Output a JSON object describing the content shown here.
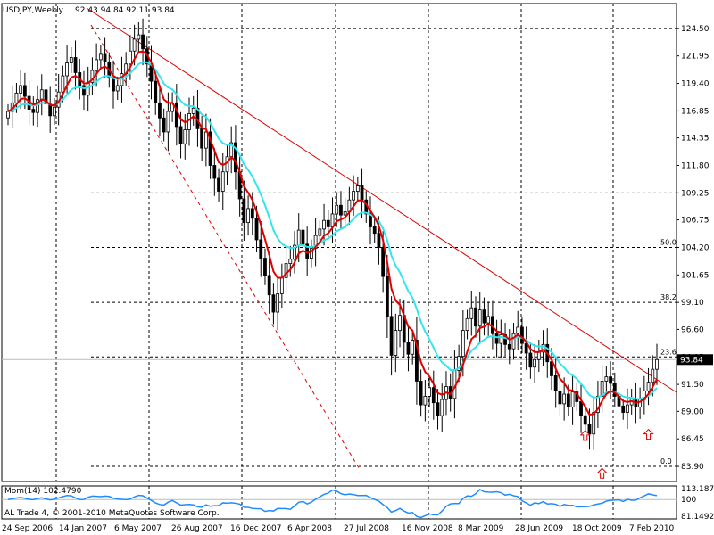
{
  "chart_data": {
    "type": "candlestick",
    "title": {
      "symbol_timeframe": "USDJPY,Weekly",
      "ohlc": "92.43 94.84 92.11 93.84"
    },
    "current_price_label": "93.84",
    "y_axis": {
      "range": [
        82.5,
        126.8
      ],
      "ticks": [
        "124.50",
        "121.95",
        "119.40",
        "116.85",
        "114.35",
        "111.80",
        "109.25",
        "106.75",
        "104.20",
        "101.65",
        "99.10",
        "96.60",
        "94.05",
        "91.50",
        "89.00",
        "86.45",
        "83.90"
      ]
    },
    "x_axis": {
      "labels": [
        "24 Sep 2006",
        "14 Jan 2007",
        "6 May 2007",
        "26 Aug 2007",
        "16 Dec 2007",
        "6 Apr 2008",
        "27 Jul 2008",
        "16 Nov 2008",
        "8 Mar 2009",
        "28 Jun 2009",
        "18 Oct 2009",
        "7 Feb 2010"
      ]
    },
    "close_series": [
      116.8,
      117.6,
      118.5,
      119.2,
      118.2,
      117.0,
      116.7,
      117.9,
      118.8,
      117.5,
      116.4,
      117.2,
      118.6,
      120.1,
      121.3,
      121.8,
      120.4,
      119.2,
      118.3,
      119.5,
      120.6,
      121.6,
      122.1,
      121.4,
      119.9,
      118.7,
      119.2,
      120.3,
      121.2,
      122.4,
      123.5,
      123.9,
      122.6,
      121.2,
      119.6,
      117.6,
      116.2,
      114.9,
      116.8,
      117.6,
      115.4,
      113.8,
      115.1,
      116.6,
      117.1,
      115.2,
      113.4,
      114.9,
      111.8,
      110.6,
      109.4,
      111.2,
      112.6,
      113.9,
      111.2,
      108.7,
      106.5,
      107.8,
      106.9,
      104.9,
      103.2,
      101.6,
      99.8,
      98.2,
      99.9,
      101.4,
      102.7,
      103.1,
      104.4,
      105.8,
      104.5,
      103.2,
      104.1,
      105.3,
      105.9,
      106.7,
      106.1,
      107.3,
      108.1,
      107.2,
      107.5,
      108.6,
      109.4,
      109.9,
      108.6,
      107.3,
      106.1,
      105.5,
      104.2,
      101.5,
      97.8,
      94.2,
      96.5,
      97.9,
      95.4,
      94.3,
      95.6,
      91.8,
      89.6,
      90.4,
      91.2,
      89.8,
      88.6,
      90.1,
      91.3,
      90.2,
      92.8,
      94.1,
      96.5,
      97.6,
      98.6,
      96.9,
      98.4,
      97.2,
      97.8,
      96.2,
      95.3,
      96.1,
      95.2,
      94.8,
      96.2,
      96.8,
      95.3,
      94.4,
      93.1,
      93.8,
      94.5,
      95.2,
      93.6,
      92.3,
      90.9,
      89.7,
      90.6,
      89.4,
      90.8,
      89.9,
      88.6,
      87.8,
      86.9,
      88.9,
      90.4,
      91.8,
      92.2,
      91.6,
      90.4,
      89.5,
      88.9,
      89.6,
      90.2,
      89.4,
      90.1,
      90.9,
      91.7,
      92.9,
      93.8
    ],
    "moving_averages": [
      {
        "name": "fast MA",
        "color": "#e00000"
      },
      {
        "name": "slow MA",
        "color": "#33e5ee"
      }
    ],
    "fibonacci": {
      "levels": [
        {
          "label": "0.0",
          "price": 83.9
        },
        {
          "label": "23.6",
          "price": 94.05
        },
        {
          "label": "38.2",
          "price": 99.1
        },
        {
          "label": "50.0",
          "price": 104.2
        }
      ]
    },
    "arrow_markers": [
      {
        "week_index": 137,
        "price": 87.8
      },
      {
        "week_index": 141,
        "price": 84.3
      },
      {
        "week_index": 152,
        "price": 87.9
      }
    ],
    "indicator": {
      "label": "Mom(14) 102.4790",
      "range": [
        81.1492,
        113.1879
      ],
      "ticks": [
        "113.1879",
        "100",
        "81.1492"
      ],
      "color": "#1e8cff"
    },
    "footer": "AL Trade 4, © 2001-2010 MetaQuotes Software Corp."
  },
  "colors": {
    "candle": "#000000",
    "trendline": "#e00000",
    "grid": "#000000",
    "current_line": "#bbbbbb"
  }
}
